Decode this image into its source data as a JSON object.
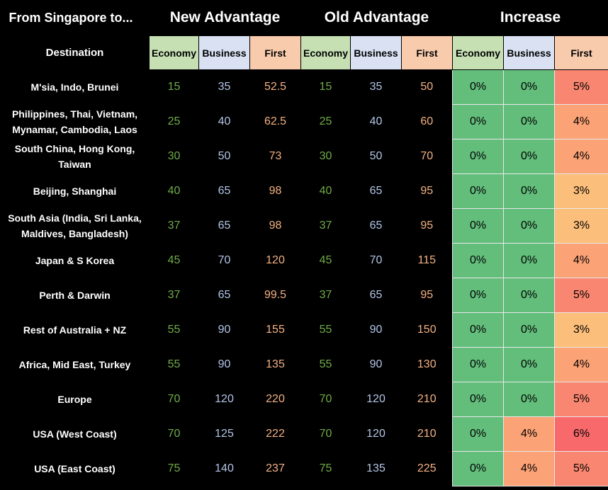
{
  "header": {
    "corner": "From Singapore to...",
    "groups": [
      "New Advantage",
      "Old Advantage",
      "Increase"
    ],
    "destination_label": "Destination",
    "classes": [
      "Economy",
      "Business",
      "First"
    ]
  },
  "colors": {
    "economy_header": "#c6e0b4",
    "business_header": "#d9e1f2",
    "first_header": "#f8cbad",
    "zero_increase": "#63be7b",
    "max_increase": "#f8696b"
  },
  "chart_data": {
    "type": "table",
    "columns": [
      "Destination",
      "New Economy",
      "New Business",
      "New First",
      "Old Economy",
      "Old Business",
      "Old First",
      "Increase Economy",
      "Increase Business",
      "Increase First"
    ],
    "rows": [
      {
        "destination": "M'sia, Indo, Brunei",
        "new": [
          "15",
          "35",
          "52.5"
        ],
        "old": [
          "15",
          "35",
          "50"
        ],
        "increase": [
          "0%",
          "0%",
          "5%"
        ]
      },
      {
        "destination": "Philippines, Thai, Vietnam, Mynamar, Cambodia, Laos",
        "new": [
          "25",
          "40",
          "62.5"
        ],
        "old": [
          "25",
          "40",
          "60"
        ],
        "increase": [
          "0%",
          "0%",
          "4%"
        ]
      },
      {
        "destination": "South China, Hong Kong, Taiwan",
        "new": [
          "30",
          "50",
          "73"
        ],
        "old": [
          "30",
          "50",
          "70"
        ],
        "increase": [
          "0%",
          "0%",
          "4%"
        ]
      },
      {
        "destination": "Beijing, Shanghai",
        "new": [
          "40",
          "65",
          "98"
        ],
        "old": [
          "40",
          "65",
          "95"
        ],
        "increase": [
          "0%",
          "0%",
          "3%"
        ]
      },
      {
        "destination": "South Asia (India, Sri Lanka, Maldives, Bangladesh)",
        "new": [
          "37",
          "65",
          "98"
        ],
        "old": [
          "37",
          "65",
          "95"
        ],
        "increase": [
          "0%",
          "0%",
          "3%"
        ]
      },
      {
        "destination": "Japan & S Korea",
        "new": [
          "45",
          "70",
          "120"
        ],
        "old": [
          "45",
          "70",
          "115"
        ],
        "increase": [
          "0%",
          "0%",
          "4%"
        ]
      },
      {
        "destination": "Perth & Darwin",
        "new": [
          "37",
          "65",
          "99.5"
        ],
        "old": [
          "37",
          "65",
          "95"
        ],
        "increase": [
          "0%",
          "0%",
          "5%"
        ]
      },
      {
        "destination": "Rest of Australia + NZ",
        "new": [
          "55",
          "90",
          "155"
        ],
        "old": [
          "55",
          "90",
          "150"
        ],
        "increase": [
          "0%",
          "0%",
          "3%"
        ]
      },
      {
        "destination": "Africa, Mid East, Turkey",
        "new": [
          "55",
          "90",
          "135"
        ],
        "old": [
          "55",
          "90",
          "130"
        ],
        "increase": [
          "0%",
          "0%",
          "4%"
        ]
      },
      {
        "destination": "Europe",
        "new": [
          "70",
          "120",
          "220"
        ],
        "old": [
          "70",
          "120",
          "210"
        ],
        "increase": [
          "0%",
          "0%",
          "5%"
        ]
      },
      {
        "destination": "USA (West Coast)",
        "new": [
          "70",
          "125",
          "222"
        ],
        "old": [
          "70",
          "120",
          "210"
        ],
        "increase": [
          "0%",
          "4%",
          "6%"
        ]
      },
      {
        "destination": "USA (East Coast)",
        "new": [
          "75",
          "140",
          "237"
        ],
        "old": [
          "75",
          "135",
          "225"
        ],
        "increase": [
          "0%",
          "4%",
          "5%"
        ]
      }
    ]
  }
}
